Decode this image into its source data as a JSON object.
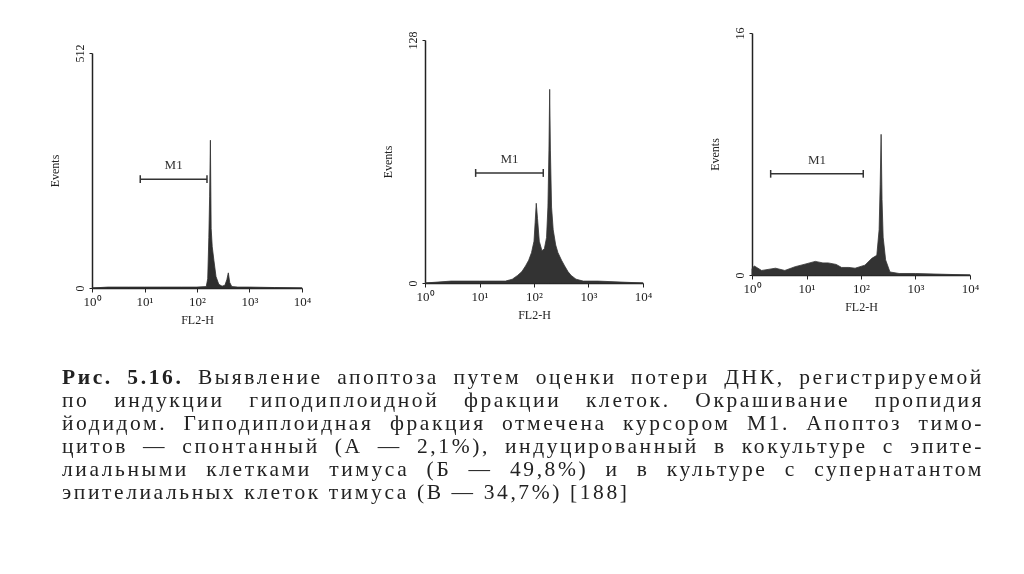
{
  "chart_data": [
    {
      "type": "area",
      "xlabel": "FL2-H",
      "ylabel": "Events",
      "log": "x",
      "xlim": [
        1,
        10000
      ],
      "xticks": [
        {
          "value": 1,
          "label": "10⁰"
        },
        {
          "value": 10,
          "label": "10¹"
        },
        {
          "value": 100,
          "label": "10²"
        },
        {
          "value": 1000,
          "label": "10³"
        },
        {
          "value": 10000,
          "label": "10⁴"
        }
      ],
      "ylim": [
        0,
        512
      ],
      "yticks": [
        0,
        512
      ],
      "series": [
        {
          "color": "#2e2e2e",
          "x": [
            1,
            2,
            5,
            10,
            20,
            50,
            100,
            150,
            160,
            168,
            174,
            180,
            186,
            195,
            210,
            230,
            260,
            300,
            340,
            370,
            395,
            420,
            460,
            600,
            1000,
            3000,
            10000
          ],
          "values": [
            0,
            2,
            2,
            2,
            2,
            2,
            2,
            3,
            20,
            110,
            200,
            322,
            130,
            90,
            60,
            25,
            8,
            4,
            6,
            18,
            33,
            12,
            3,
            2,
            2,
            1,
            0
          ]
        },
        {
          "type": "line",
          "name": "M1",
          "color": "#333333",
          "x": [
            8.3,
            155
          ],
          "values": [
            237,
            237
          ]
        }
      ]
    },
    {
      "type": "area",
      "xlabel": "FL2-H",
      "ylabel": "Events",
      "log": "x",
      "xlim": [
        1,
        10000
      ],
      "xticks": [
        {
          "value": 1,
          "label": "10⁰"
        },
        {
          "value": 10,
          "label": "10¹"
        },
        {
          "value": 100,
          "label": "10²"
        },
        {
          "value": 1000,
          "label": "10³"
        },
        {
          "value": 10000,
          "label": "10⁴"
        }
      ],
      "ylim": [
        0,
        128
      ],
      "yticks": [
        0,
        128
      ],
      "series": [
        {
          "color": "#333333",
          "x": [
            1,
            3,
            10,
            20,
            30,
            40,
            50,
            60,
            70,
            80,
            90,
            100,
            105,
            110,
            116,
            125,
            140,
            155,
            170,
            180,
            188,
            194,
            200,
            210,
            225,
            250,
            275,
            320,
            365,
            420,
            480,
            590,
            800,
            1500,
            10000
          ],
          "values": [
            0,
            1,
            1,
            1,
            1,
            2,
            4,
            6,
            9,
            12,
            16,
            22,
            32,
            42,
            34,
            22,
            17,
            18,
            24,
            40,
            70,
            102,
            70,
            40,
            28,
            20,
            16,
            12,
            9,
            6,
            4,
            2,
            1,
            1,
            0
          ]
        },
        {
          "type": "line",
          "name": "M1",
          "color": "#333333",
          "x": [
            8.5,
            148
          ],
          "values": [
            58,
            58
          ]
        }
      ]
    },
    {
      "type": "area",
      "xlabel": "FL2-H",
      "ylabel": "Events",
      "log": "x",
      "xlim": [
        1,
        10000
      ],
      "xticks": [
        {
          "value": 1,
          "label": "10⁰"
        },
        {
          "value": 10,
          "label": "10¹"
        },
        {
          "value": 100,
          "label": "10²"
        },
        {
          "value": 1000,
          "label": "10³"
        },
        {
          "value": 10000,
          "label": "10⁴"
        }
      ],
      "ylim": [
        0,
        16
      ],
      "yticks": [
        0,
        16
      ],
      "series": [
        {
          "color": "#333333",
          "x": [
            1,
            1.1,
            1.5,
            2.7,
            4,
            6.2,
            9,
            14.5,
            20,
            25,
            35,
            44,
            60,
            78,
            118,
            158,
            195,
            215,
            225,
            234,
            243,
            255,
            283,
            340,
            500,
            1000,
            10000
          ],
          "values": [
            0.4,
            0.6,
            0.3,
            0.45,
            0.3,
            0.55,
            0.7,
            0.9,
            0.8,
            0.8,
            0.7,
            0.5,
            0.5,
            0.45,
            0.65,
            1.1,
            1.3,
            3,
            6,
            9.3,
            5,
            2.5,
            1,
            0.2,
            0.1,
            0.1,
            0
          ]
        },
        {
          "type": "line",
          "name": "M1",
          "color": "#333333",
          "x": [
            2.2,
            110
          ],
          "values": [
            6.7,
            6.7
          ]
        }
      ]
    },
    {
      "type": "other",
      "title": "Рис. 5.16.",
      "annotations": [
        "Выявление апоптоза путем оценки потери ДНК, регистрируемой",
        "по индукции гиподиплоидной фракции клеток. Окрашивание пропидия",
        "йодидом. Гиподиплоидная фракция отмечена курсором M1. Апоптоз тимо-",
        "цитов — спонтанный (А — 2,1%), индуцированный в кокультуре с эпите-",
        "лиальными клетками тимуса (Б — 49,8%) и в культуре с супернатантом",
        "эпителиальных клеток тимуса (В — 34,7%) [188]"
      ]
    }
  ]
}
